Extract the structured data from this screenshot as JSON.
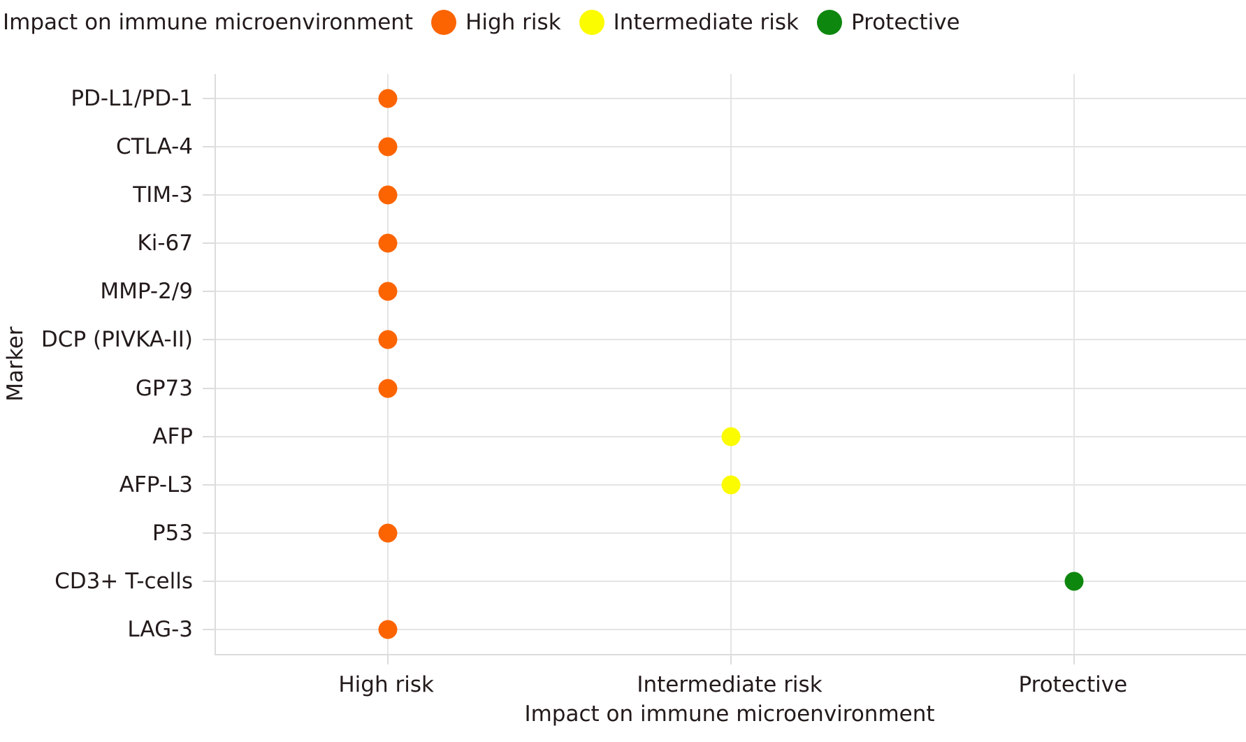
{
  "legend": {
    "title": "Impact on immune microenvironment",
    "items": [
      {
        "label": "High risk",
        "color": "#fb6400"
      },
      {
        "label": "Intermediate risk",
        "color": "#fcfc00"
      },
      {
        "label": "Protective",
        "color": "#0e870e"
      }
    ]
  },
  "chart_data": {
    "type": "scatter",
    "title": "",
    "xlabel": "Impact on immune microenvironment",
    "ylabel": "Marker",
    "x_categories": [
      "High risk",
      "Intermediate risk",
      "Protective"
    ],
    "y_categories": [
      "PD-L1/PD-1",
      "CTLA-4",
      "TIM-3",
      "Ki-67",
      "MMP-2/9",
      "DCP (PIVKA-II)",
      "GP73",
      "AFP",
      "AFP-L3",
      "P53",
      "CD3+ T-cells",
      "LAG-3"
    ],
    "category_colors": {
      "High risk": "#fb6400",
      "Intermediate risk": "#fcfc00",
      "Protective": "#0e870e"
    },
    "points": [
      {
        "marker": "PD-L1/PD-1",
        "impact": "High risk"
      },
      {
        "marker": "CTLA-4",
        "impact": "High risk"
      },
      {
        "marker": "TIM-3",
        "impact": "High risk"
      },
      {
        "marker": "Ki-67",
        "impact": "High risk"
      },
      {
        "marker": "MMP-2/9",
        "impact": "High risk"
      },
      {
        "marker": "DCP (PIVKA-II)",
        "impact": "High risk"
      },
      {
        "marker": "GP73",
        "impact": "High risk"
      },
      {
        "marker": "AFP",
        "impact": "Intermediate risk"
      },
      {
        "marker": "AFP-L3",
        "impact": "Intermediate risk"
      },
      {
        "marker": "P53",
        "impact": "High risk"
      },
      {
        "marker": "CD3+ T-cells",
        "impact": "Protective"
      },
      {
        "marker": "LAG-3",
        "impact": "High risk"
      }
    ],
    "grid": true,
    "legend_position": "top-left"
  }
}
